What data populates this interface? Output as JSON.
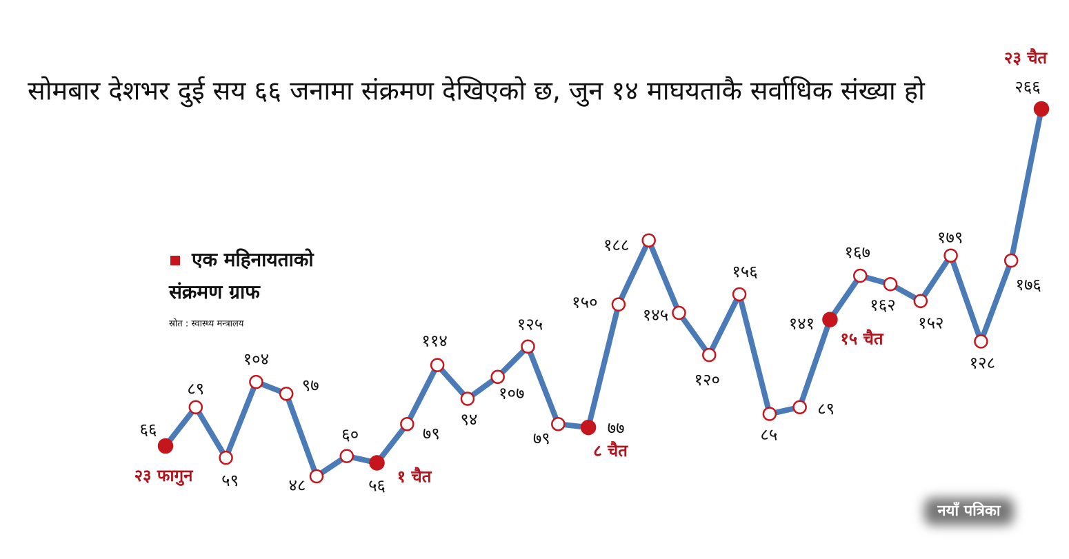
{
  "chart_data": {
    "type": "line",
    "title": "सोमबार देशभर दुई सय ६६ जनामा संक्रमण देखिएको छ, जुन १४ माघयताकै सर्वाधिक संख्या हो",
    "legend_lines": [
      "एक महिनायताको",
      "संक्रमण ग्राफ"
    ],
    "legend_color": "#c4161c",
    "source": "स्रोत : स्वास्थ्य मन्त्रालय",
    "brand": "नयाँ पत्रिका",
    "categories": [
      "२३ फागुन",
      null,
      null,
      null,
      null,
      null,
      null,
      "१ चैत",
      null,
      null,
      null,
      null,
      null,
      null,
      "८ चैत",
      null,
      null,
      null,
      null,
      null,
      null,
      null,
      "१५ चैत",
      null,
      null,
      null,
      null,
      null,
      null,
      "२३ चैत"
    ],
    "values": [
      66,
      89,
      59,
      104,
      97,
      48,
      60,
      56,
      79,
      114,
      94,
      107,
      125,
      79,
      77,
      150,
      188,
      145,
      120,
      156,
      85,
      89,
      141,
      167,
      162,
      152,
      179,
      128,
      176,
      266
    ],
    "value_labels": [
      "६६",
      "८९",
      "५९",
      "१०४",
      "९७",
      "४८",
      "६०",
      "५६",
      "७९",
      "११४",
      "९४",
      "१०७",
      "१२५",
      "७९",
      "७७",
      "१५०",
      "१८८",
      "१४५",
      "१२०",
      "१५६",
      "८५",
      "८९",
      "१४१",
      "१६७",
      "१६२",
      "१५२",
      "१७९",
      "१२८",
      "१७६",
      "२६६"
    ],
    "color": "#4a7bb7",
    "marker_color": "#c4161c"
  }
}
